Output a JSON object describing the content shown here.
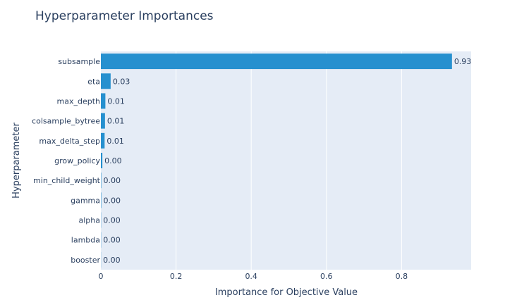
{
  "chart_data": {
    "type": "bar",
    "orientation": "horizontal",
    "title": "Hyperparameter Importances",
    "xlabel": "Importance for Objective Value",
    "ylabel": "Hyperparameter",
    "categories": [
      "subsample",
      "eta",
      "max_depth",
      "colsample_bytree",
      "max_delta_step",
      "grow_policy",
      "min_child_weight",
      "gamma",
      "alpha",
      "lambda",
      "booster"
    ],
    "values": [
      0.934,
      0.026,
      0.012,
      0.011,
      0.01,
      0.004,
      0.001,
      0.001,
      0.0005,
      0.0005,
      0.0003
    ],
    "value_labels": [
      "0.93",
      "0.03",
      "0.01",
      "0.01",
      "0.01",
      "0.00",
      "0.00",
      "0.00",
      "0.00",
      "0.00",
      "0.00"
    ],
    "xlim": [
      0,
      0.985
    ],
    "xticks": [
      0,
      0.2,
      0.4,
      0.6,
      0.8
    ],
    "xtick_labels": [
      "0",
      "0.2",
      "0.4",
      "0.6",
      "0.8"
    ],
    "grid": true,
    "colors": {
      "bar": "#2690cf",
      "plot_bg": "#e5ecf6",
      "grid": "#ffffff",
      "text": "#2a3f5f"
    }
  }
}
